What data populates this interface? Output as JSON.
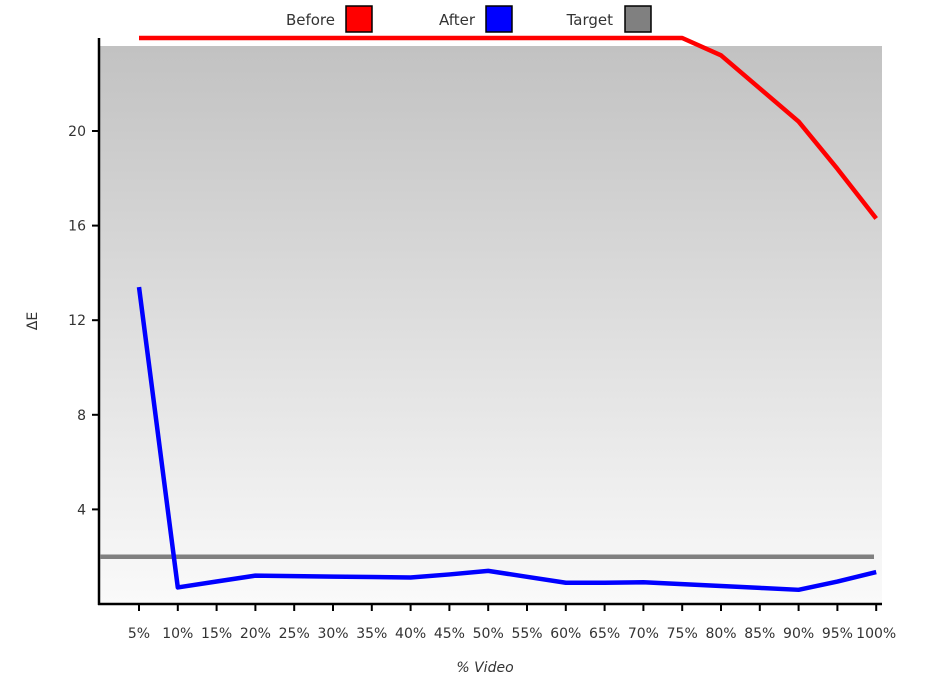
{
  "chart_data": {
    "type": "line",
    "xlabel": "% Video",
    "ylabel": "ΔE",
    "categories": [
      "5%",
      "10%",
      "15%",
      "20%",
      "25%",
      "30%",
      "35%",
      "40%",
      "45%",
      "50%",
      "55%",
      "60%",
      "65%",
      "70%",
      "75%",
      "80%",
      "85%",
      "90%",
      "95%",
      "100%"
    ],
    "y_ticks": [
      4,
      8,
      12,
      16,
      20
    ],
    "ylim": [
      0,
      23.6
    ],
    "legend": {
      "position": "top-center",
      "entries": [
        {
          "label": "Before",
          "color": "#ff0000"
        },
        {
          "label": "After",
          "color": "#0000ff"
        },
        {
          "label": "Target",
          "color": "#808080"
        }
      ]
    },
    "series": [
      {
        "name": "Before",
        "color": "#ff0000",
        "values": [
          25,
          25,
          25,
          25,
          25,
          25,
          25,
          25,
          25,
          25,
          25,
          25,
          25,
          25,
          24.3,
          23.2,
          21.8,
          20.4,
          18.4,
          16.3
        ]
      },
      {
        "name": "After",
        "color": "#0000ff",
        "values": [
          13.4,
          0.7,
          0.95,
          1.2,
          1.18,
          1.16,
          1.14,
          1.12,
          1.25,
          1.4,
          1.15,
          0.9,
          0.9,
          0.92,
          0.84,
          0.76,
          0.68,
          0.6,
          0.95,
          1.35
        ]
      },
      {
        "name": "Target",
        "color": "#808080",
        "values": [
          2,
          2,
          2,
          2,
          2,
          2,
          2,
          2,
          2,
          2,
          2,
          2,
          2,
          2,
          2,
          2,
          2,
          2,
          2,
          2
        ]
      }
    ],
    "grid": false,
    "background": "vertical gray-to-white gradient"
  }
}
